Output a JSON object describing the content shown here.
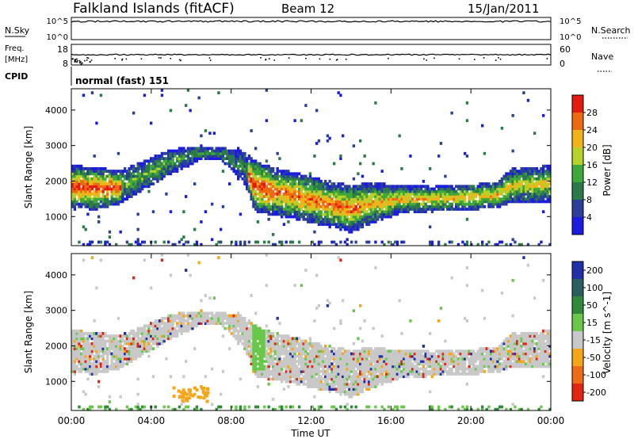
{
  "header": {
    "station": "Falkland Islands (fitACF)",
    "beam": "Beam 12",
    "date": "15/Jan/2011"
  },
  "panels": {
    "nsky": {
      "label": "N.Sky",
      "ticks_left": [
        "10^5",
        "10^0"
      ],
      "ticks_right": [
        "10^5",
        "10^0"
      ],
      "right_label": "N.Search"
    },
    "freq": {
      "label_line1": "Freq.",
      "label_line2": "[MHz]",
      "ticks_left": [
        "18",
        "8"
      ],
      "ticks_right": [
        "60",
        "0"
      ],
      "right_label": "Nave"
    },
    "cpid": {
      "label": "CPID",
      "value": "normal (fast) 151"
    }
  },
  "x_axis": {
    "label": "Time UT",
    "ticks": [
      "00:00",
      "04:00",
      "08:00",
      "12:00",
      "16:00",
      "20:00",
      "00:00"
    ]
  },
  "power_panel": {
    "ylabel": "Slant Range [km]",
    "yticks": [
      "1000",
      "2000",
      "3000",
      "4000"
    ],
    "colorbar_label": "Power [dB]",
    "colorbar_ticks": [
      "4",
      "8",
      "12",
      "16",
      "20",
      "24",
      "28"
    ],
    "colors": [
      "#1c1ce0",
      "#2a3f9a",
      "#2c7a4a",
      "#3fa83a",
      "#b7d12b",
      "#f2b21a",
      "#ee6a12",
      "#e21a10"
    ]
  },
  "velocity_panel": {
    "ylabel": "Slant Range [km]",
    "yticks": [
      "1000",
      "2000",
      "3000",
      "4000"
    ],
    "colorbar_label": "Velocity [m s^-1]",
    "colorbar_ticks": [
      "200",
      "100",
      "50",
      "15",
      "-15",
      "-50",
      "-100",
      "-200"
    ],
    "colors": [
      "#2030a8",
      "#2b5e5e",
      "#2f8a3a",
      "#69c84a",
      "#c8c8c8",
      "#f6a418",
      "#ee6c16",
      "#e22612"
    ]
  },
  "chart_data": [
    {
      "type": "heatmap",
      "title": "Power",
      "xlabel": "Time UT",
      "ylabel": "Slant Range [km]",
      "xlim": [
        0,
        24
      ],
      "ylim": [
        180,
        4600
      ],
      "colorbar": {
        "label": "Power [dB]",
        "range": [
          0,
          32
        ]
      },
      "echo_bands_approx": [
        {
          "t_start": 0.0,
          "t_end": 2.4,
          "range_low": 1300,
          "range_high": 2100,
          "power_peak_db": 28
        },
        {
          "t_start": 2.4,
          "t_end": 5.4,
          "range_low": 1900,
          "range_high": 2800,
          "power_peak_db": 14
        },
        {
          "t_start": 5.4,
          "t_end": 8.8,
          "range_low": 2500,
          "range_high": 3000,
          "power_peak_db": 12
        },
        {
          "t_start": 8.8,
          "t_end": 10.0,
          "range_low": 1100,
          "range_high": 2600,
          "power_peak_db": 30
        },
        {
          "t_start": 10.0,
          "t_end": 14.2,
          "range_low": 700,
          "range_high": 2000,
          "power_peak_db": 28
        },
        {
          "t_start": 14.2,
          "t_end": 21.5,
          "range_low": 1200,
          "range_high": 2000,
          "power_peak_db": 24
        },
        {
          "t_start": 21.5,
          "t_end": 24.0,
          "range_low": 1600,
          "range_high": 2400,
          "power_peak_db": 22
        }
      ]
    },
    {
      "type": "heatmap",
      "title": "Velocity",
      "xlabel": "Time UT",
      "ylabel": "Slant Range [km]",
      "xlim": [
        0,
        24
      ],
      "ylim": [
        180,
        4600
      ],
      "colorbar": {
        "label": "Velocity [m s^-1]",
        "range": [
          -250,
          250
        ]
      },
      "notable_features": [
        {
          "t_start": 9.0,
          "t_end": 9.7,
          "range_low": 1300,
          "range_high": 2600,
          "velocity": 30
        },
        {
          "t_start": 5.0,
          "t_end": 6.8,
          "range_low": 500,
          "range_high": 900,
          "velocity": -50
        }
      ]
    }
  ]
}
